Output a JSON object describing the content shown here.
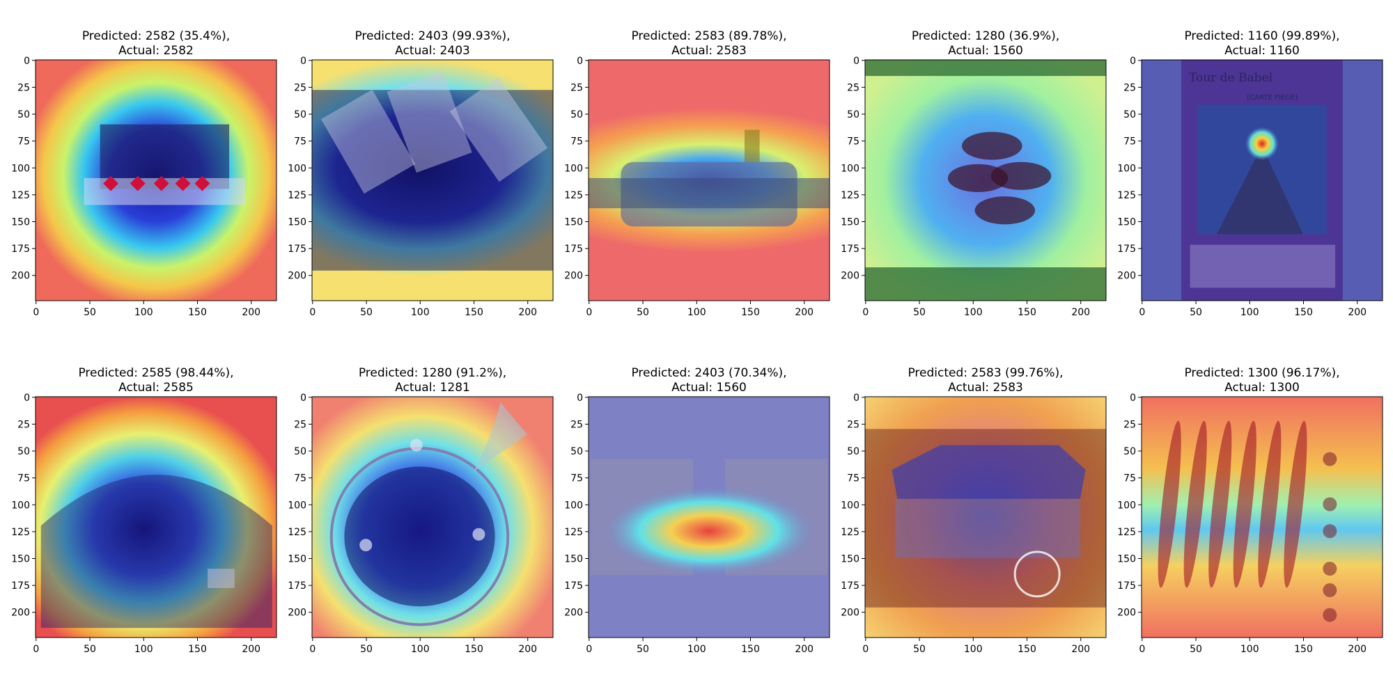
{
  "figure": {
    "colormap": "jet",
    "panel_count": 10
  },
  "chart_data": [
    {
      "type": "heatmap",
      "title_line1": "Predicted: 2582 (35.4%),",
      "title_line2": "Actual: 2582",
      "predicted": "2582",
      "confidence_pct": 35.4,
      "actual": "2582",
      "x_ticks": [
        "0",
        "50",
        "100",
        "150",
        "200"
      ],
      "y_ticks": [
        "0",
        "25",
        "50",
        "75",
        "100",
        "125",
        "150",
        "175",
        "200"
      ],
      "xlim": [
        0,
        224
      ],
      "ylim": [
        224,
        0
      ],
      "heat": "center-low",
      "content": "room"
    },
    {
      "type": "heatmap",
      "title_line1": "Predicted: 2403 (99.93%),",
      "title_line2": "Actual: 2403",
      "predicted": "2403",
      "confidence_pct": 99.93,
      "actual": "2403",
      "x_ticks": [
        "0",
        "50",
        "100",
        "150",
        "200"
      ],
      "y_ticks": [
        "0",
        "25",
        "50",
        "75",
        "100",
        "125",
        "150",
        "175",
        "200"
      ],
      "xlim": [
        0,
        224
      ],
      "ylim": [
        224,
        0
      ],
      "heat": "band-low",
      "content": "books"
    },
    {
      "type": "heatmap",
      "title_line1": "Predicted: 2583 (89.78%),",
      "title_line2": "Actual: 2583",
      "predicted": "2583",
      "confidence_pct": 89.78,
      "actual": "2583",
      "x_ticks": [
        "0",
        "50",
        "100",
        "150",
        "200"
      ],
      "y_ticks": [
        "0",
        "25",
        "50",
        "75",
        "100",
        "125",
        "150",
        "175",
        "200"
      ],
      "xlim": [
        0,
        224
      ],
      "ylim": [
        224,
        0
      ],
      "heat": "hband-low",
      "content": "cylinder"
    },
    {
      "type": "heatmap",
      "title_line1": "Predicted: 1280 (36.9%),",
      "title_line2": "Actual: 1560",
      "predicted": "1280",
      "confidence_pct": 36.9,
      "actual": "1560",
      "x_ticks": [
        "0",
        "50",
        "100",
        "150",
        "200"
      ],
      "y_ticks": [
        "0",
        "25",
        "50",
        "75",
        "100",
        "125",
        "150",
        "175",
        "200"
      ],
      "xlim": [
        0,
        224
      ],
      "ylim": [
        224,
        0
      ],
      "heat": "green-mid",
      "content": "winerack"
    },
    {
      "type": "heatmap",
      "title_line1": "Predicted: 1160 (99.89%),",
      "title_line2": "Actual: 1160",
      "predicted": "1160",
      "confidence_pct": 99.89,
      "actual": "1160",
      "x_ticks": [
        "0",
        "50",
        "100",
        "150",
        "200"
      ],
      "y_ticks": [
        "0",
        "25",
        "50",
        "75",
        "100",
        "125",
        "150",
        "175",
        "200"
      ],
      "xlim": [
        0,
        224
      ],
      "ylim": [
        224,
        0
      ],
      "heat": "flat-low",
      "content": "card",
      "card_title": "Tour de Babel",
      "card_subtitle": "[CARTE PIÈGE]"
    },
    {
      "type": "heatmap",
      "title_line1": "Predicted: 2585 (98.44%),",
      "title_line2": "Actual: 2585",
      "predicted": "2585",
      "confidence_pct": 98.44,
      "actual": "2585",
      "x_ticks": [
        "0",
        "50",
        "100",
        "150",
        "200"
      ],
      "y_ticks": [
        "0",
        "25",
        "50",
        "75",
        "100",
        "125",
        "150",
        "175",
        "200"
      ],
      "xlim": [
        0,
        224
      ],
      "ylim": [
        224,
        0
      ],
      "heat": "arch-low",
      "content": "arch"
    },
    {
      "type": "heatmap",
      "title_line1": "Predicted: 1280 (91.2%),",
      "title_line2": "Actual: 1281",
      "predicted": "1280",
      "confidence_pct": 91.2,
      "actual": "1281",
      "x_ticks": [
        "0",
        "50",
        "100",
        "150",
        "200"
      ],
      "y_ticks": [
        "0",
        "25",
        "50",
        "75",
        "100",
        "125",
        "150",
        "175",
        "200"
      ],
      "xlim": [
        0,
        224
      ],
      "ylim": [
        224,
        0
      ],
      "heat": "bowl-low",
      "content": "bowl"
    },
    {
      "type": "heatmap",
      "title_line1": "Predicted: 2403 (70.34%),",
      "title_line2": "Actual: 1560",
      "predicted": "2403",
      "confidence_pct": 70.34,
      "actual": "1560",
      "x_ticks": [
        "0",
        "50",
        "100",
        "150",
        "200"
      ],
      "y_ticks": [
        "0",
        "25",
        "50",
        "75",
        "100",
        "125",
        "150",
        "175",
        "200"
      ],
      "xlim": [
        0,
        224
      ],
      "ylim": [
        224,
        0
      ],
      "heat": "center-high",
      "content": "filters"
    },
    {
      "type": "heatmap",
      "title_line1": "Predicted: 2583 (99.76%),",
      "title_line2": "Actual: 2583",
      "predicted": "2583",
      "confidence_pct": 99.76,
      "actual": "2583",
      "x_ticks": [
        "0",
        "50",
        "100",
        "150",
        "200"
      ],
      "y_ticks": [
        "0",
        "25",
        "50",
        "75",
        "100",
        "125",
        "150",
        "175",
        "200"
      ],
      "xlim": [
        0,
        224
      ],
      "ylim": [
        224,
        0
      ],
      "heat": "pool-low",
      "content": "pool"
    },
    {
      "type": "heatmap",
      "title_line1": "Predicted: 1300 (96.17%),",
      "title_line2": "Actual: 1300",
      "predicted": "1300",
      "confidence_pct": 96.17,
      "actual": "1300",
      "x_ticks": [
        "0",
        "50",
        "100",
        "150",
        "200"
      ],
      "y_ticks": [
        "0",
        "25",
        "50",
        "75",
        "100",
        "125",
        "150",
        "175",
        "200"
      ],
      "xlim": [
        0,
        224
      ],
      "ylim": [
        224,
        0
      ],
      "heat": "props-high",
      "content": "propellers"
    }
  ]
}
